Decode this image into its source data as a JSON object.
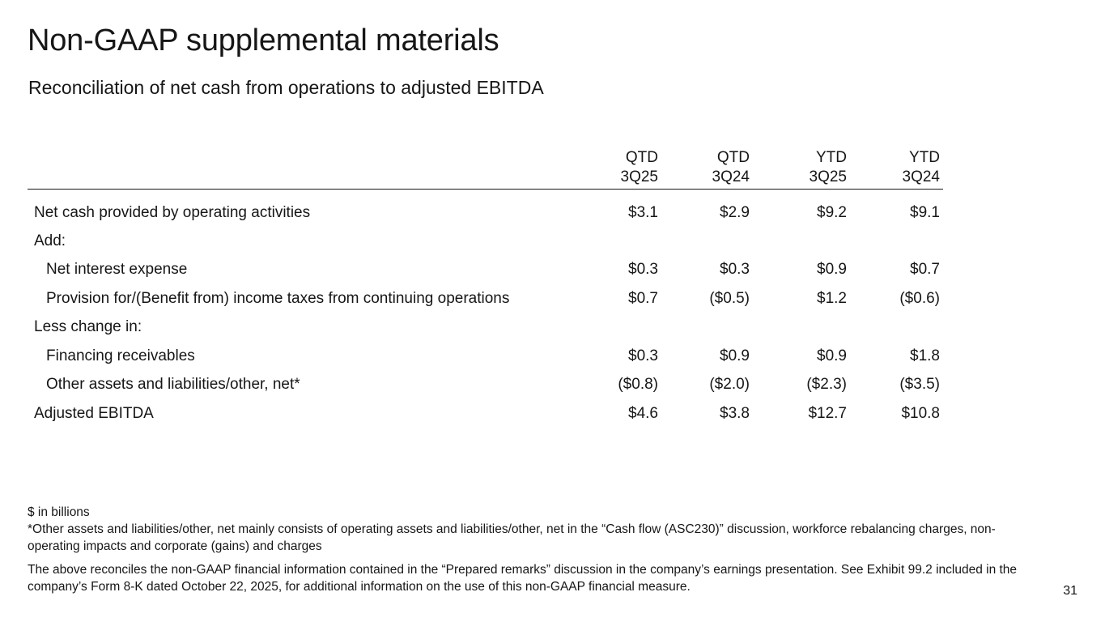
{
  "slide": {
    "title": "Non-GAAP supplemental materials",
    "subtitle": "Reconciliation of net cash from operations to adjusted EBITDA",
    "page_number": "31"
  },
  "table": {
    "header_row1": [
      "QTD",
      "QTD",
      "YTD",
      "YTD"
    ],
    "header_row2": [
      "3Q25",
      "3Q24",
      "3Q25",
      "3Q24"
    ],
    "rows": [
      {
        "label": "Net cash provided by operating activities",
        "indent": false,
        "values": [
          "$3.1",
          "$2.9",
          "$9.2",
          "$9.1"
        ]
      },
      {
        "label": "Add:",
        "indent": false,
        "values": [
          "",
          "",
          "",
          ""
        ]
      },
      {
        "label": "Net interest expense",
        "indent": true,
        "values": [
          "$0.3",
          "$0.3",
          "$0.9",
          "$0.7"
        ]
      },
      {
        "label": "Provision for/(Benefit from) income taxes from continuing operations",
        "indent": true,
        "values": [
          "$0.7",
          "($0.5)",
          "$1.2",
          "($0.6)"
        ]
      },
      {
        "label": "Less change in:",
        "indent": false,
        "values": [
          "",
          "",
          "",
          ""
        ]
      },
      {
        "label": "Financing receivables",
        "indent": true,
        "values": [
          "$0.3",
          "$0.9",
          "$0.9",
          "$1.8"
        ]
      },
      {
        "label": "Other assets and liabilities/other, net*",
        "indent": true,
        "values": [
          "($0.8)",
          "($2.0)",
          "($2.3)",
          "($3.5)"
        ]
      },
      {
        "label": "Adjusted EBITDA",
        "indent": false,
        "values": [
          "$4.6",
          "$3.8",
          "$12.7",
          "$10.8"
        ]
      }
    ]
  },
  "notes": {
    "units": "$ in billions",
    "footnote": "*Other assets and liabilities/other, net mainly consists of operating assets and liabilities/other, net in the “Cash flow (ASC230)” discussion, workforce rebalancing charges, non-operating impacts and corporate (gains) and charges",
    "disclaimer": "The above reconciles the non-GAAP financial information contained in the “Prepared remarks” discussion in the company’s earnings presentation. See Exhibit 99.2 included in the company’s Form 8-K dated October 22, 2025, for additional information on the use of this non-GAAP financial measure."
  }
}
